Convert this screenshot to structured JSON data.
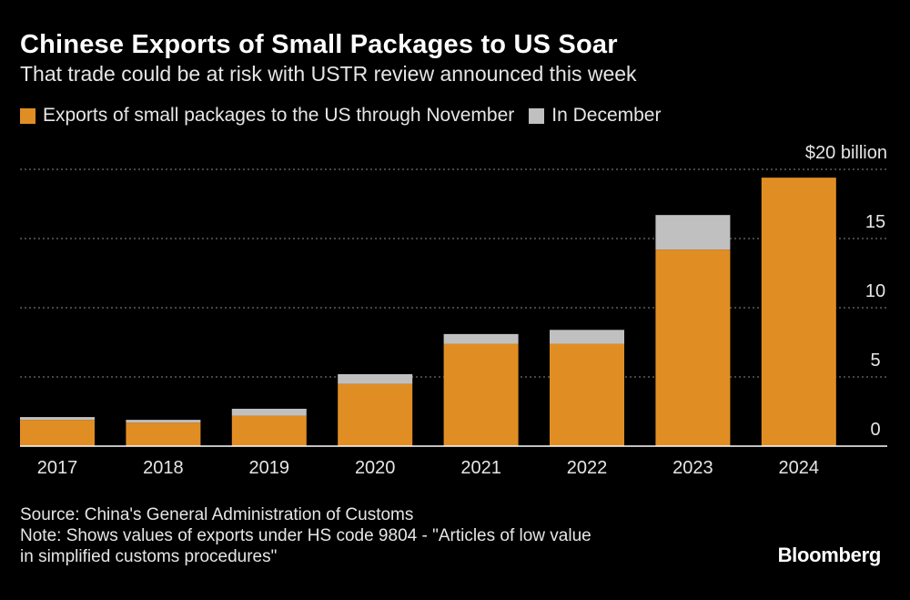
{
  "header": {
    "title": "Chinese Exports of Small Packages to US Soar",
    "subtitle": "That trade could be at risk with USTR review announced this week"
  },
  "legend": [
    {
      "label": "Exports of small packages to the US through November",
      "color": "#e08e24"
    },
    {
      "label": "In December",
      "color": "#c0c0c0"
    }
  ],
  "footer": {
    "source": "Source: China's General Administration of Customs",
    "note_line1": "Note: Shows values of exports under HS code 9804 - \"Articles of low value",
    "note_line2": "in simplified customs procedures\"",
    "brand": "Bloomberg"
  },
  "chart_data": {
    "type": "bar",
    "stacked": true,
    "title": "Chinese Exports of Small Packages to US Soar",
    "subtitle": "That trade could be at risk with USTR review announced this week",
    "unit_label": "$20 billion",
    "categories": [
      "2017",
      "2018",
      "2019",
      "2020",
      "2021",
      "2022",
      "2023",
      "2024"
    ],
    "series": [
      {
        "name": "Exports of small packages to the US through November",
        "color": "#e08e24",
        "values": [
          1.9,
          1.7,
          2.2,
          4.5,
          7.4,
          7.4,
          14.2,
          19.4
        ]
      },
      {
        "name": "In December",
        "color": "#c0c0c0",
        "values": [
          0.2,
          0.2,
          0.5,
          0.7,
          0.7,
          1.0,
          2.5,
          0
        ]
      }
    ],
    "ylim": [
      0,
      20
    ],
    "yticks": [
      0,
      5,
      10,
      15,
      20
    ],
    "ytick_labels": [
      "0",
      "5",
      "10",
      "15",
      "$20 billion"
    ],
    "y_axis_side": "right",
    "grid": true
  }
}
